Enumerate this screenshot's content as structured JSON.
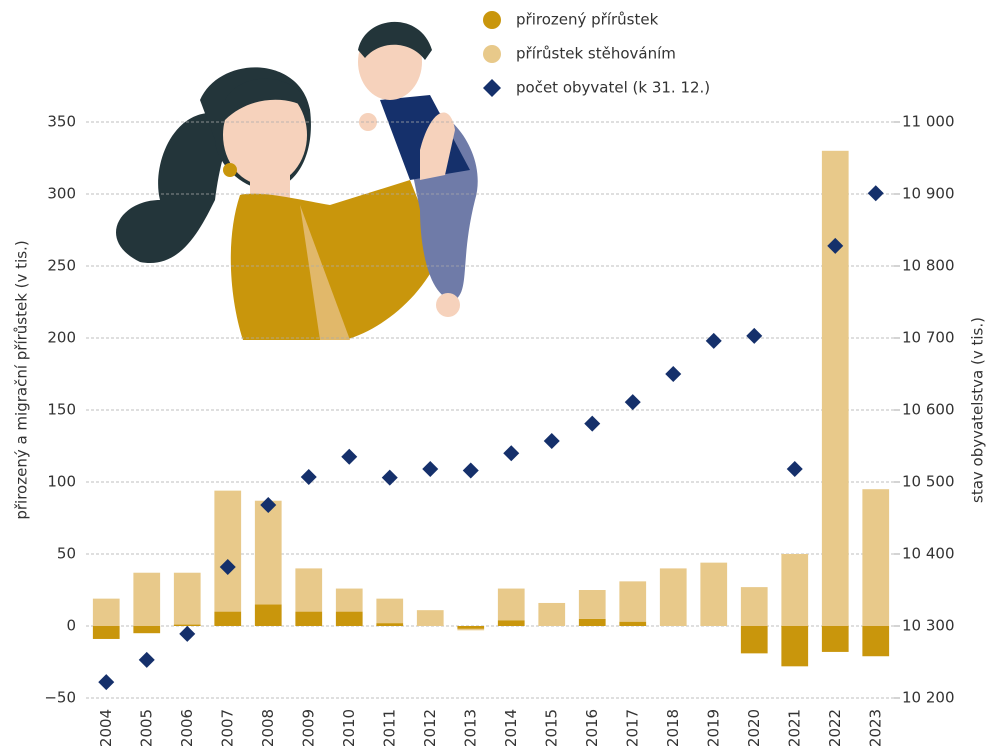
{
  "chart_data": {
    "type": "bar",
    "categories": [
      "2004",
      "2005",
      "2006",
      "2007",
      "2008",
      "2009",
      "2010",
      "2011",
      "2012",
      "2013",
      "2014",
      "2015",
      "2016",
      "2017",
      "2018",
      "2019",
      "2020",
      "2021",
      "2022",
      "2023"
    ],
    "series": [
      {
        "name": "přirozený přírůstek",
        "color": "#c9960c",
        "values": [
          -9,
          -5,
          1,
          10,
          15,
          10,
          10,
          2,
          0,
          -2,
          4,
          0,
          5,
          3,
          0,
          0,
          -19,
          -28,
          -18,
          -21
        ]
      },
      {
        "name": "přírůstek stěhováním",
        "color": "#e8c98a",
        "values": [
          19,
          37,
          36,
          84,
          72,
          30,
          16,
          17,
          11,
          -1,
          22,
          16,
          20,
          28,
          40,
          44,
          27,
          50,
          330,
          95
        ]
      },
      {
        "name": "počet obyvatel (k 31. 12.)",
        "color": "#15306b",
        "axis": "y2",
        "type": "scatter",
        "values": [
          10222,
          10253,
          10289,
          10382,
          10468,
          10507,
          10535,
          10506,
          10518,
          10516,
          10540,
          10557,
          10581,
          10611,
          10650,
          10696,
          10703,
          10518,
          10828,
          10901
        ]
      }
    ],
    "ylabel": "přirozený a migrační přírůstek (v tis.)",
    "y2label": "stav obyvatelstva (v tis.)",
    "ylim": [
      -50,
      350
    ],
    "yticks": [
      {
        "value": -50,
        "label": "−50"
      },
      0,
      50,
      100,
      150,
      200,
      250,
      300,
      350
    ],
    "y2lim": [
      10200,
      11000
    ],
    "y2ticks": [
      {
        "value": 10200,
        "label": "10 200"
      },
      {
        "value": 10300,
        "label": "10 300"
      },
      {
        "value": 10400,
        "label": "10 400"
      },
      {
        "value": 10500,
        "label": "10 500"
      },
      {
        "value": 10600,
        "label": "10 600"
      },
      {
        "value": 10700,
        "label": "10 700"
      },
      {
        "value": 10800,
        "label": "10 800"
      },
      {
        "value": 10900,
        "label": "10 900"
      },
      {
        "value": 11000,
        "label": "11 000"
      }
    ],
    "grid": true
  }
}
